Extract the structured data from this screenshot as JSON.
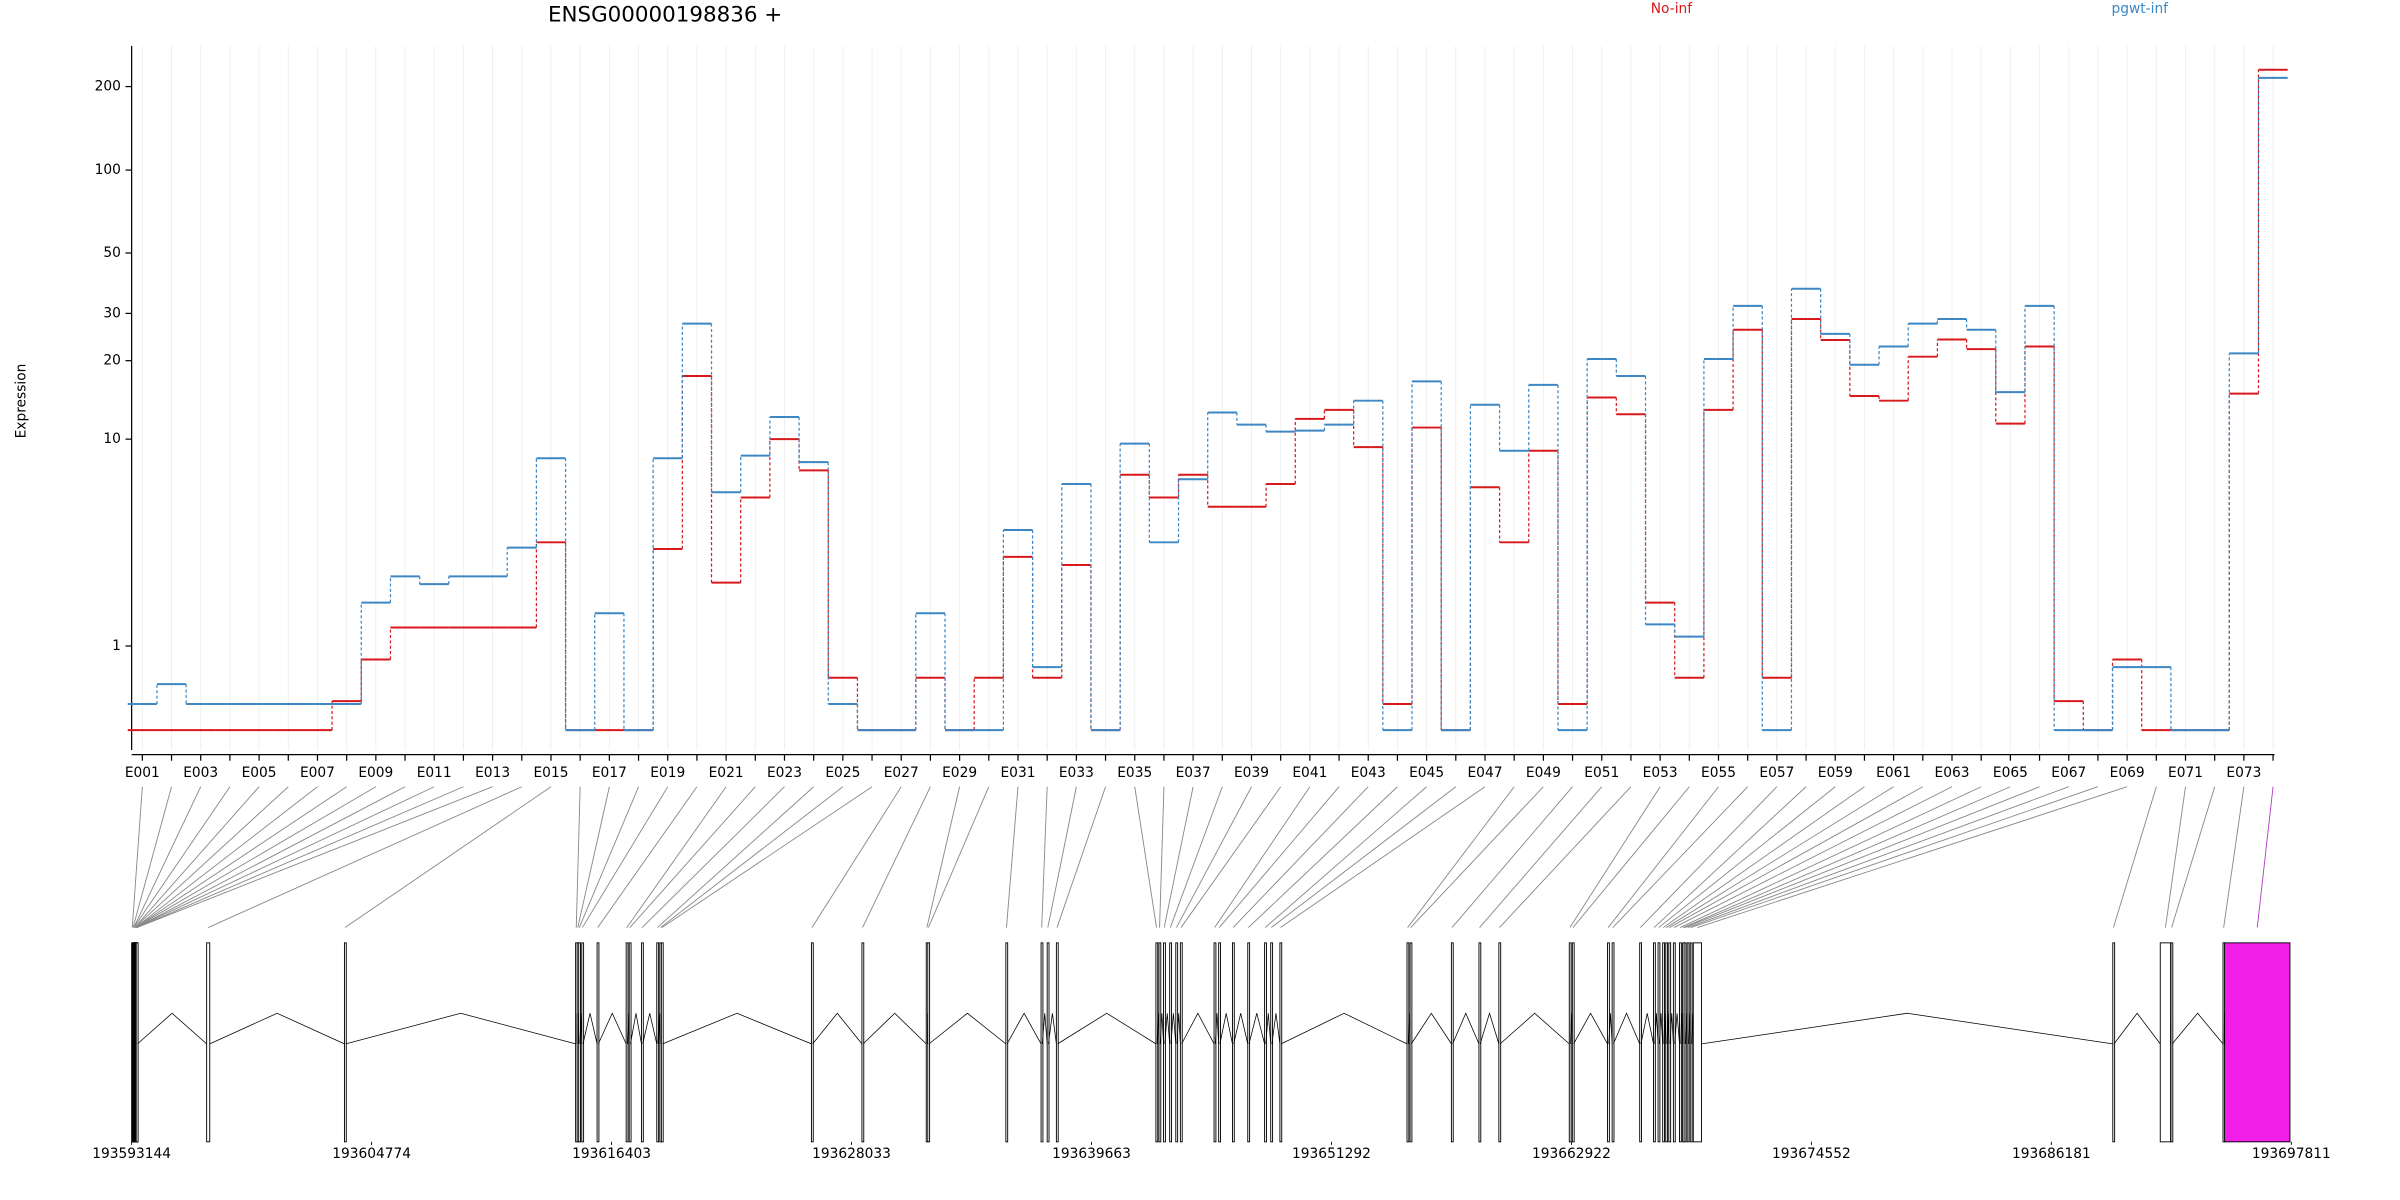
{
  "chart_data": [
    {
      "type": "step",
      "title": "ENSG00000198836 +",
      "y_label": "Expression",
      "scale": "log1p",
      "grid": true,
      "categories": [
        "E001",
        null,
        "E003",
        null,
        "E005",
        null,
        "E007",
        null,
        "E009",
        null,
        "E011",
        null,
        "E013",
        null,
        "E015",
        null,
        "E017",
        null,
        "E019",
        null,
        "E021",
        null,
        "E023",
        null,
        "E025",
        null,
        "E027",
        null,
        "E029",
        null,
        "E031",
        null,
        "E033",
        null,
        "E035",
        null,
        "E037",
        null,
        "E039",
        null,
        "E041",
        null,
        "E043",
        null,
        "E045",
        null,
        "E047",
        null,
        "E049",
        null,
        "E051",
        null,
        "E053",
        null,
        "E055",
        null,
        "E057",
        null,
        "E059",
        null,
        "E061",
        null,
        "E063",
        null,
        "E065",
        null,
        "E067",
        null,
        "E069",
        null,
        "E071",
        null,
        "E073",
        null
      ],
      "series": [
        {
          "name": "No-inf",
          "color": "#d7191c",
          "values": [
            0,
            0,
            0,
            0,
            0,
            0,
            0,
            0.27,
            0.79,
            1.33,
            1.33,
            1.33,
            1.33,
            1.33,
            3.7,
            0,
            0,
            0,
            3.45,
            17.5,
            2.37,
            5.8,
            10,
            7.5,
            0.54,
            0,
            0,
            0.54,
            0,
            0.54,
            3.17,
            0.54,
            2.9,
            0,
            7.2,
            5.8,
            7.2,
            5.3,
            5.3,
            6.6,
            12,
            13,
            9.3,
            0.24,
            11.1,
            0,
            6.4,
            3.7,
            9,
            0.24,
            14.5,
            12.5,
            1.86,
            0.54,
            13,
            26.1,
            0.54,
            28.6,
            23.9,
            14.7,
            14.1,
            20.7,
            24,
            22.1,
            11.5,
            22.6,
            0.27,
            0,
            0.79,
            0,
            0,
            0,
            15,
            230
          ]
        },
        {
          "name": "pgwt-inf",
          "color": "#3d87c4",
          "values": [
            0.24,
            0.46,
            0.24,
            0.24,
            0.24,
            0.24,
            0.24,
            0.24,
            1.86,
            2.55,
            2.33,
            2.55,
            2.55,
            3.5,
            8.4,
            0,
            1.62,
            0,
            8.4,
            27.5,
            6.1,
            8.6,
            12.2,
            8.1,
            0.24,
            0,
            0,
            1.62,
            0,
            0,
            4.2,
            0.68,
            6.6,
            0,
            9.6,
            3.7,
            6.9,
            12.7,
            11.4,
            10.7,
            10.8,
            11.4,
            14.1,
            0,
            16.7,
            0,
            13.6,
            9,
            16.2,
            0,
            20.3,
            17.5,
            1.39,
            1.16,
            20.3,
            32,
            0,
            37,
            25.2,
            19.3,
            22.6,
            27.5,
            28.6,
            26.1,
            15.2,
            32,
            0,
            0,
            0.68,
            0.68,
            0,
            0,
            21.3,
            215
          ]
        }
      ],
      "ylim": [
        0,
        280
      ],
      "yticks": [
        1,
        10,
        20,
        30,
        50,
        100,
        200
      ]
    },
    {
      "type": "gene-model",
      "xlim": [
        193593144,
        193697811
      ],
      "xticks": [
        193593144,
        193604774,
        193616403,
        193628033,
        193639663,
        193651292,
        193662922,
        193674552,
        193686181,
        193697811
      ],
      "highlight_index": 73,
      "highlight_color": "#f01ee6",
      "starts": [
        193593144,
        193593181,
        193593218,
        193593218,
        193593255,
        193593255,
        193593292,
        193593292,
        193593292,
        193593329,
        193593329,
        193593367,
        193593367,
        193596780,
        193603458,
        193614662,
        193614736,
        193614810,
        193614959,
        193615701,
        193617111,
        193617259,
        193617853,
        193618595,
        193618743,
        193618817,
        193626089,
        193628537,
        193631654,
        193631728,
        193635512,
        193637219,
        193637515,
        193637961,
        193642784,
        193642932,
        193643155,
        193643452,
        193643748,
        193643971,
        193645603,
        193645826,
        193646494,
        193647236,
        193648052,
        193648349,
        193648794,
        193654953,
        193655101,
        193657104,
        193658440,
        193659405,
        193662818,
        193662966,
        193664673,
        193664895,
        193666231,
        193666899,
        193667121,
        193667344,
        193667492,
        193667641,
        193667864,
        193668160,
        193668309,
        193668383,
        193668531,
        193668680,
        193668828,
        193689159,
        193691459,
        193691978,
        193694501,
        193694575
      ],
      "ends": [
        193593204,
        193593241,
        193593278,
        193593278,
        193593315,
        193593315,
        193593352,
        193593352,
        193593352,
        193593389,
        193593389,
        193593427,
        193593427,
        193596930,
        193603518,
        193614722,
        193614796,
        193614870,
        193615019,
        193615761,
        193617171,
        193617319,
        193617913,
        193618655,
        193618803,
        193618877,
        193626149,
        193628597,
        193631714,
        193631788,
        193635572,
        193637279,
        193637575,
        193638021,
        193642844,
        193642992,
        193643215,
        193643512,
        193643808,
        193644031,
        193645663,
        193645886,
        193646554,
        193647296,
        193648112,
        193648409,
        193648854,
        193655013,
        193655161,
        193657164,
        193658500,
        193659465,
        193662878,
        193663026,
        193664733,
        193664955,
        193666291,
        193666959,
        193667181,
        193667404,
        193667552,
        193667701,
        193667924,
        193668220,
        193668369,
        193668443,
        193668591,
        193668740,
        193669228,
        193689219,
        193691959,
        193692038,
        193694561,
        193697744
      ]
    }
  ]
}
